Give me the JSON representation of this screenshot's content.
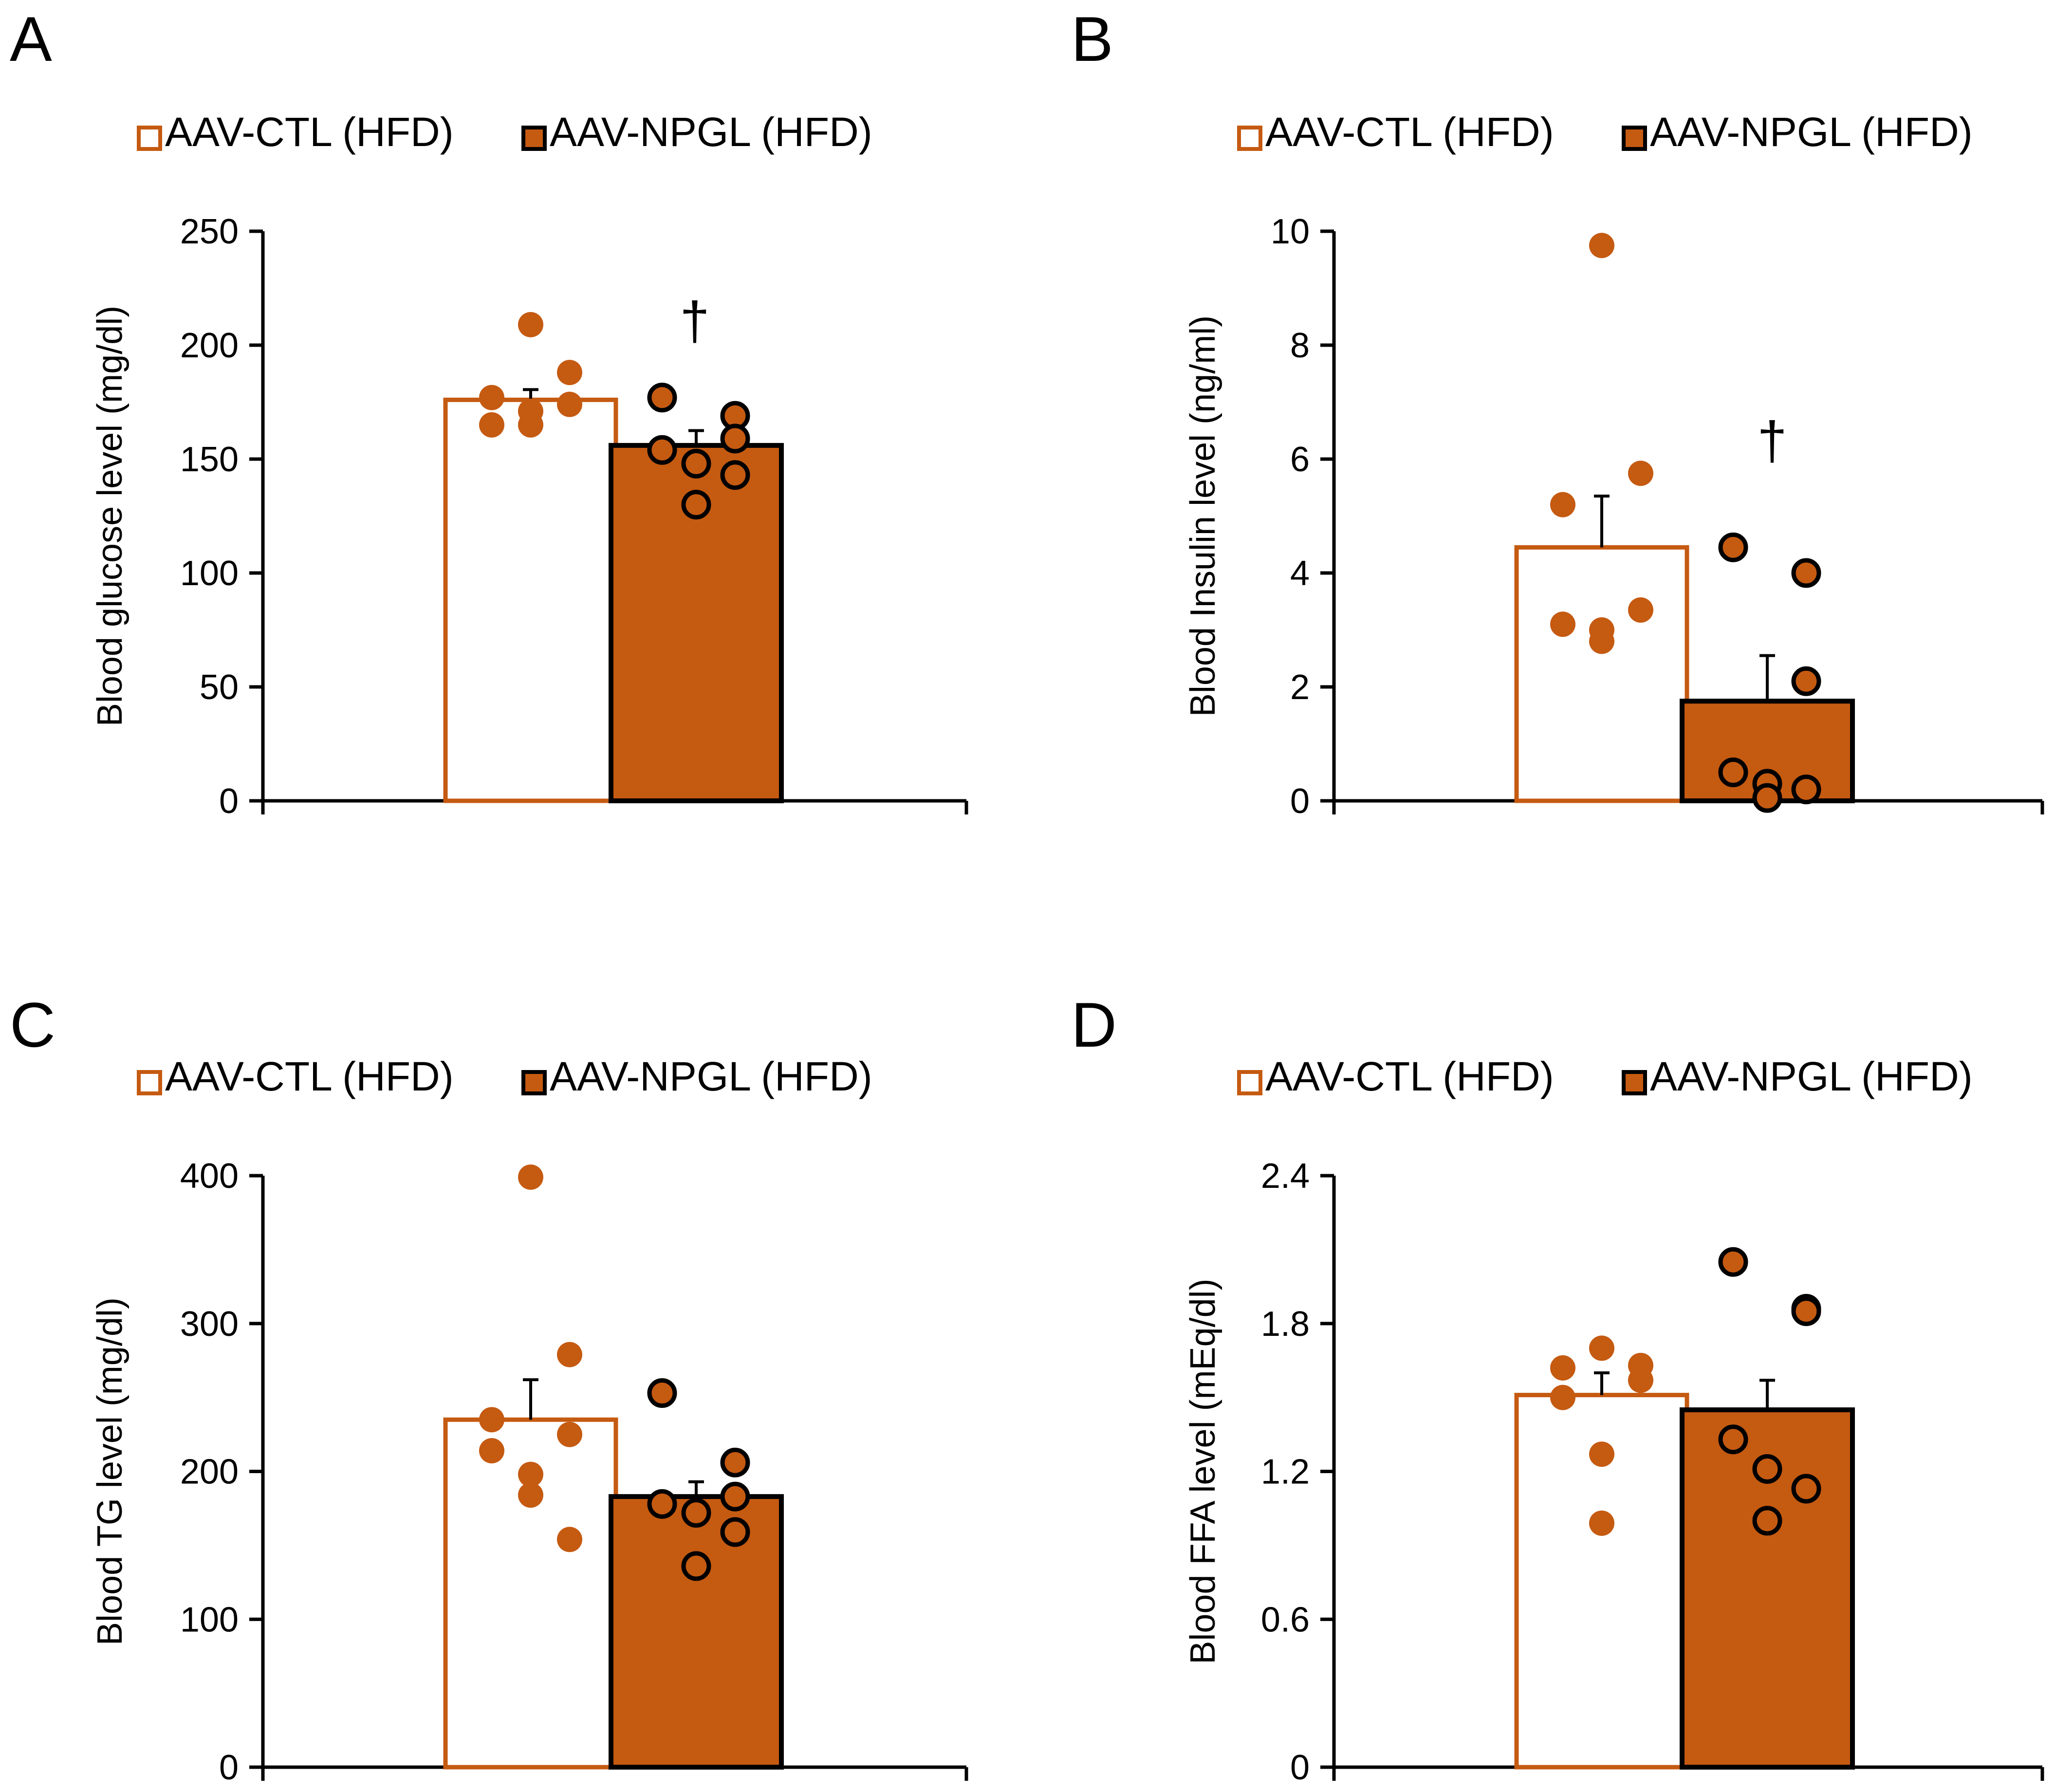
{
  "colors": {
    "ctl": "#C55A11",
    "npgl_fill": "#C55A11",
    "npgl_edge": "#000000",
    "axis": "#000000"
  },
  "legend": {
    "ctl_label": "AAV-CTL (HFD)",
    "npgl_label": "AAV-NPGL (HFD)"
  },
  "chart_data": [
    {
      "panel": "A",
      "type": "bar",
      "ylabel": "Blood glucose level (mg/dl)",
      "ylim": [
        0,
        250
      ],
      "yticks": [
        "0",
        "50",
        "100",
        "150",
        "200",
        "250"
      ],
      "categories": [
        "AAV-CTL (HFD)",
        "AAV-NPGL (HFD)"
      ],
      "series": [
        {
          "name": "AAV-CTL (HFD)",
          "mean": 176,
          "sem": 4.5,
          "points": [
            209,
            188,
            177,
            174,
            165,
            165,
            171
          ]
        },
        {
          "name": "AAV-NPGL (HFD)",
          "mean": 156,
          "sem": 6.5,
          "points": [
            177,
            169,
            159,
            154,
            148,
            143,
            130
          ]
        }
      ],
      "annotation": {
        "text": "†",
        "series": 1,
        "y": 210
      }
    },
    {
      "panel": "B",
      "type": "bar",
      "ylabel": "Blood Insulin level (ng/ml)",
      "ylim": [
        0,
        10
      ],
      "yticks": [
        "0",
        "2",
        "4",
        "6",
        "8",
        "10"
      ],
      "categories": [
        "AAV-CTL (HFD)",
        "AAV-NPGL (HFD)"
      ],
      "series": [
        {
          "name": "AAV-CTL (HFD)",
          "mean": 4.45,
          "sem": 0.9,
          "points": [
            9.75,
            5.75,
            5.2,
            3.35,
            3.1,
            3.0,
            2.8
          ]
        },
        {
          "name": "AAV-NPGL (HFD)",
          "mean": 1.75,
          "sem": 0.8,
          "points": [
            4.45,
            4.0,
            2.1,
            0.5,
            0.3,
            0.2,
            0.05
          ]
        }
      ],
      "annotation": {
        "text": "†",
        "series": 1,
        "y": 6.3
      }
    },
    {
      "panel": "C",
      "type": "bar",
      "ylabel": "Blood TG level (mg/dl)",
      "ylim": [
        0,
        400
      ],
      "yticks": [
        "0",
        "100",
        "200",
        "300",
        "400"
      ],
      "categories": [
        "AAV-CTL (HFD)",
        "AAV-NPGL (HFD)"
      ],
      "series": [
        {
          "name": "AAV-CTL (HFD)",
          "mean": 235,
          "sem": 27,
          "points": [
            399,
            279,
            235,
            225,
            214,
            198,
            184,
            154
          ]
        },
        {
          "name": "AAV-NPGL (HFD)",
          "mean": 183,
          "sem": 10,
          "points": [
            253,
            206,
            183,
            178,
            172,
            159,
            136
          ]
        }
      ]
    },
    {
      "panel": "D",
      "type": "bar",
      "ylabel": "Blood FFA level (mEq/dl)",
      "ylim": [
        0,
        2.4
      ],
      "yticks": [
        "0",
        "0.6",
        "1.2",
        "1.8",
        "2.4"
      ],
      "categories": [
        "AAV-CTL (HFD)",
        "AAV-NPGL (HFD)"
      ],
      "series": [
        {
          "name": "AAV-CTL (HFD)",
          "mean": 1.51,
          "sem": 0.09,
          "points": [
            1.7,
            1.63,
            1.62,
            1.57,
            1.5,
            1.27,
            0.99
          ]
        },
        {
          "name": "AAV-NPGL (HFD)",
          "mean": 1.45,
          "sem": 0.12,
          "points": [
            2.05,
            1.86,
            1.85,
            1.33,
            1.21,
            1.13,
            1.0
          ]
        }
      ]
    }
  ]
}
